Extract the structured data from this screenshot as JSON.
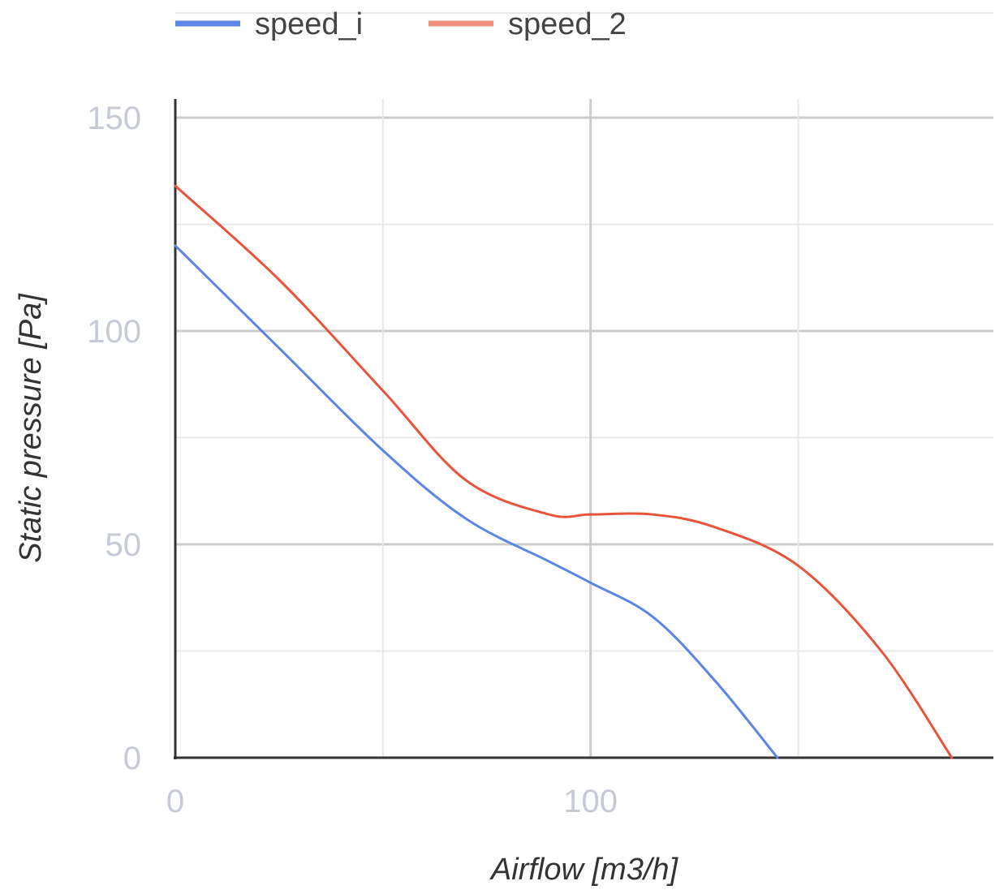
{
  "chart_data": {
    "type": "line",
    "title": "",
    "xlabel": "Airflow [m3/h]",
    "ylabel": "Static pressure [Pa]",
    "xlim": [
      0,
      197
    ],
    "ylim": [
      0,
      150
    ],
    "xticks": [
      0,
      100
    ],
    "x_minor_gridlines": [
      50,
      150
    ],
    "yticks": [
      0,
      50,
      100,
      150
    ],
    "y_minor_gridlines": [
      25,
      75,
      125
    ],
    "grid": true,
    "legend_position": "top",
    "series": [
      {
        "name": "speed_i",
        "color": "#5b86e5",
        "x": [
          0,
          25,
          50,
          70,
          90,
          100,
          115,
          130,
          145
        ],
        "y": [
          120,
          96,
          72,
          56,
          46,
          41,
          33,
          18,
          0
        ]
      },
      {
        "name": "speed_2",
        "color": "#e8543a",
        "x": [
          0,
          25,
          50,
          70,
          90,
          100,
          115,
          130,
          150,
          170,
          187
        ],
        "y": [
          134,
          112,
          86,
          65,
          57,
          57,
          57,
          54,
          45,
          25,
          0
        ]
      }
    ]
  }
}
